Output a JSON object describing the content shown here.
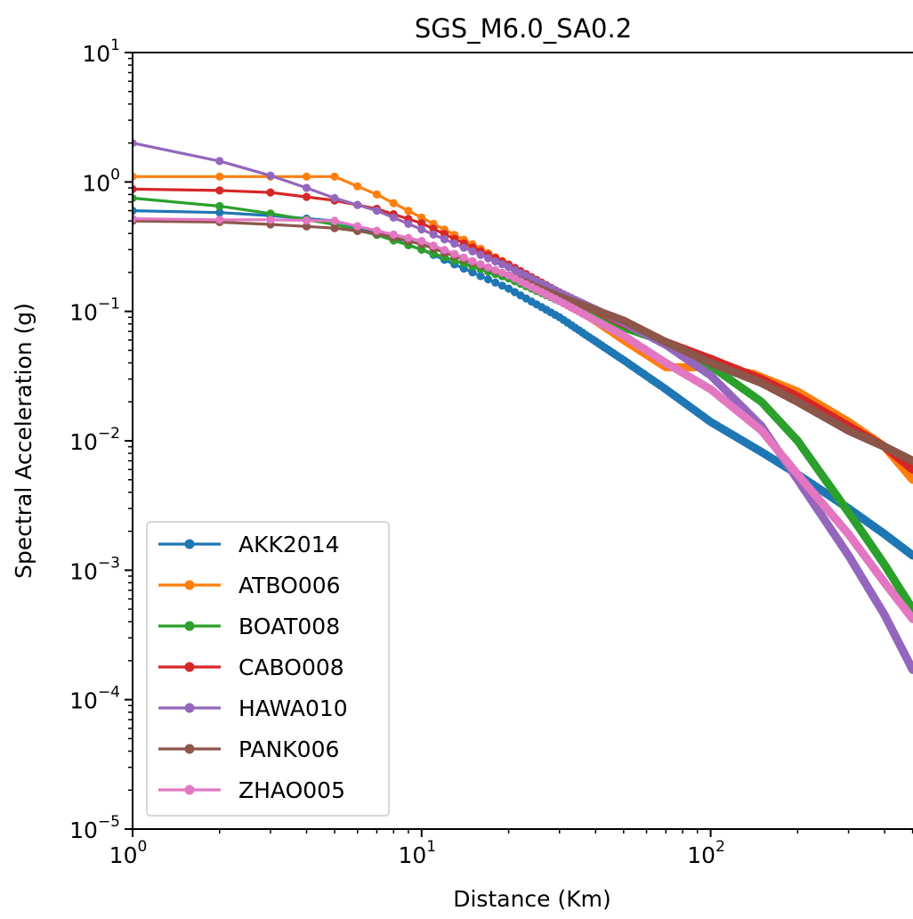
{
  "chart_data": {
    "type": "line",
    "title": "SGS_M6.0_SA0.2",
    "xlabel": "Distance (Km)",
    "ylabel": "Spectral Acceleration (g)",
    "xscale": "log",
    "yscale": "log",
    "xlim": [
      1,
      500
    ],
    "ylim": [
      1e-05,
      10
    ],
    "x_ticks": [
      {
        "value": 1,
        "base": "10",
        "exp": "0"
      },
      {
        "value": 10,
        "base": "10",
        "exp": "1"
      },
      {
        "value": 100,
        "base": "10",
        "exp": "2"
      }
    ],
    "y_ticks": [
      {
        "value": 10,
        "base": "10",
        "exp": "1"
      },
      {
        "value": 1,
        "base": "10",
        "exp": "0"
      },
      {
        "value": 0.1,
        "base": "10",
        "exp": "−1"
      },
      {
        "value": 0.01,
        "base": "10",
        "exp": "−2"
      },
      {
        "value": 0.001,
        "base": "10",
        "exp": "−3"
      },
      {
        "value": 0.0001,
        "base": "10",
        "exp": "−4"
      },
      {
        "value": 1e-05,
        "base": "10",
        "exp": "−5"
      }
    ],
    "grid": false,
    "legend_position": "lower-left",
    "marker": "circle",
    "series": [
      {
        "name": "AKK2014",
        "color": "#1f77b4",
        "points": [
          [
            1,
            0.6
          ],
          [
            2,
            0.58
          ],
          [
            3,
            0.55
          ],
          [
            5,
            0.5
          ],
          [
            7,
            0.4
          ],
          [
            10,
            0.3
          ],
          [
            20,
            0.15
          ],
          [
            30,
            0.09
          ],
          [
            50,
            0.042
          ],
          [
            70,
            0.025
          ],
          [
            100,
            0.014
          ],
          [
            150,
            0.0082
          ],
          [
            200,
            0.0055
          ],
          [
            300,
            0.003
          ],
          [
            400,
            0.0019
          ],
          [
            500,
            0.0013
          ]
        ]
      },
      {
        "name": "ATBO006",
        "color": "#ff7f0e",
        "points": [
          [
            1,
            1.1
          ],
          [
            3,
            1.1
          ],
          [
            5,
            1.1
          ],
          [
            7,
            0.8
          ],
          [
            10,
            0.53
          ],
          [
            15,
            0.33
          ],
          [
            20,
            0.23
          ],
          [
            30,
            0.13
          ],
          [
            50,
            0.06
          ],
          [
            70,
            0.037
          ],
          [
            100,
            0.037
          ],
          [
            140,
            0.033
          ],
          [
            200,
            0.024
          ],
          [
            300,
            0.014
          ],
          [
            400,
            0.009
          ],
          [
            500,
            0.005
          ]
        ]
      },
      {
        "name": "BOAT008",
        "color": "#2ca02c",
        "points": [
          [
            1,
            0.75
          ],
          [
            2,
            0.65
          ],
          [
            3,
            0.57
          ],
          [
            5,
            0.47
          ],
          [
            7,
            0.39
          ],
          [
            10,
            0.3
          ],
          [
            20,
            0.18
          ],
          [
            30,
            0.12
          ],
          [
            50,
            0.075
          ],
          [
            70,
            0.058
          ],
          [
            100,
            0.038
          ],
          [
            150,
            0.02
          ],
          [
            200,
            0.01
          ],
          [
            300,
            0.0028
          ],
          [
            400,
            0.0011
          ],
          [
            500,
            0.0005
          ]
        ]
      },
      {
        "name": "CABO008",
        "color": "#d62728",
        "points": [
          [
            1,
            0.88
          ],
          [
            2,
            0.86
          ],
          [
            3,
            0.83
          ],
          [
            5,
            0.72
          ],
          [
            7,
            0.62
          ],
          [
            10,
            0.48
          ],
          [
            20,
            0.23
          ],
          [
            30,
            0.14
          ],
          [
            50,
            0.08
          ],
          [
            70,
            0.058
          ],
          [
            100,
            0.043
          ],
          [
            150,
            0.03
          ],
          [
            200,
            0.022
          ],
          [
            300,
            0.013
          ],
          [
            400,
            0.009
          ],
          [
            500,
            0.006
          ]
        ]
      },
      {
        "name": "HAWA010",
        "color": "#9467bd",
        "points": [
          [
            1,
            2.0
          ],
          [
            2,
            1.45
          ],
          [
            3,
            1.12
          ],
          [
            4,
            0.9
          ],
          [
            5,
            0.75
          ],
          [
            7,
            0.6
          ],
          [
            10,
            0.43
          ],
          [
            20,
            0.22
          ],
          [
            30,
            0.14
          ],
          [
            50,
            0.082
          ],
          [
            70,
            0.055
          ],
          [
            100,
            0.032
          ],
          [
            150,
            0.013
          ],
          [
            200,
            0.005
          ],
          [
            300,
            0.0013
          ],
          [
            400,
            0.00045
          ],
          [
            500,
            0.00017
          ]
        ]
      },
      {
        "name": "PANK006",
        "color": "#8c564b",
        "points": [
          [
            1,
            0.5
          ],
          [
            2,
            0.49
          ],
          [
            3,
            0.47
          ],
          [
            5,
            0.44
          ],
          [
            7,
            0.4
          ],
          [
            10,
            0.33
          ],
          [
            20,
            0.19
          ],
          [
            30,
            0.13
          ],
          [
            50,
            0.085
          ],
          [
            70,
            0.058
          ],
          [
            100,
            0.04
          ],
          [
            150,
            0.028
          ],
          [
            200,
            0.02
          ],
          [
            300,
            0.012
          ],
          [
            400,
            0.009
          ],
          [
            500,
            0.007
          ]
        ]
      },
      {
        "name": "ZHAO005",
        "color": "#e377c2",
        "points": [
          [
            1,
            0.52
          ],
          [
            2,
            0.51
          ],
          [
            3,
            0.51
          ],
          [
            5,
            0.5
          ],
          [
            7,
            0.42
          ],
          [
            10,
            0.35
          ],
          [
            20,
            0.19
          ],
          [
            30,
            0.12
          ],
          [
            50,
            0.065
          ],
          [
            70,
            0.04
          ],
          [
            100,
            0.025
          ],
          [
            150,
            0.012
          ],
          [
            200,
            0.0055
          ],
          [
            300,
            0.0019
          ],
          [
            400,
            0.0008
          ],
          [
            500,
            0.00042
          ]
        ]
      }
    ]
  }
}
